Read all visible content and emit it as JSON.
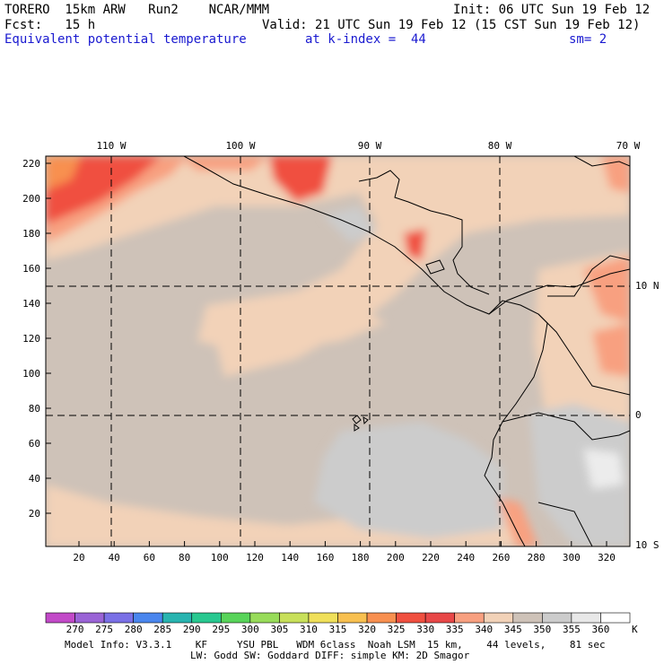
{
  "header": {
    "model": "TORERO  15km ARW   Run2    NCAR/MMM",
    "init": "Init: 06 UTC Sun 19 Feb 12",
    "fcst": "Fcst:   15 h",
    "valid": "Valid: 21 UTC Sun 19 Feb 12 (15 CST Sun 19 Feb 12)",
    "field": "Equivalent potential temperature",
    "level": "at k-index =  44",
    "smooth": "sm= 2"
  },
  "axes": {
    "x_ticks": [
      "20",
      "40",
      "60",
      "80",
      "100",
      "120",
      "140",
      "160",
      "180",
      "200",
      "220",
      "240",
      "260",
      "280",
      "300",
      "320"
    ],
    "y_ticks": [
      "20",
      "40",
      "60",
      "80",
      "100",
      "120",
      "140",
      "160",
      "180",
      "200",
      "220"
    ],
    "lon_labels": [
      "110 W",
      "100 W",
      "90 W",
      "80 W",
      "70 W"
    ],
    "lat_labels": [
      "10 N",
      "0",
      "10 S"
    ]
  },
  "colorbar": {
    "values": [
      "270",
      "275",
      "280",
      "285",
      "290",
      "295",
      "300",
      "305",
      "310",
      "315",
      "320",
      "325",
      "330",
      "335",
      "340",
      "345",
      "350",
      "355",
      "360"
    ],
    "unit": "K",
    "colors": [
      "#c24ac8",
      "#9a64d6",
      "#7a70e6",
      "#4a86ee",
      "#28b4b0",
      "#28c890",
      "#58d45a",
      "#98dc5a",
      "#c8e05a",
      "#f0e05a",
      "#f8c050",
      "#f89050",
      "#f05040",
      "#e84848",
      "#f8a080",
      "#f2d2b8",
      "#cec2b8",
      "#cccccc",
      "#e8e8e8",
      "#ffffff"
    ]
  },
  "footer": {
    "line1": "Model Info: V3.3.1    KF     YSU PBL   WDM 6class  Noah LSM  15 km,    44 levels,    81 sec",
    "line2": "LW: Godd SW: Goddard DIFF: simple KM: 2D Smagor"
  }
}
